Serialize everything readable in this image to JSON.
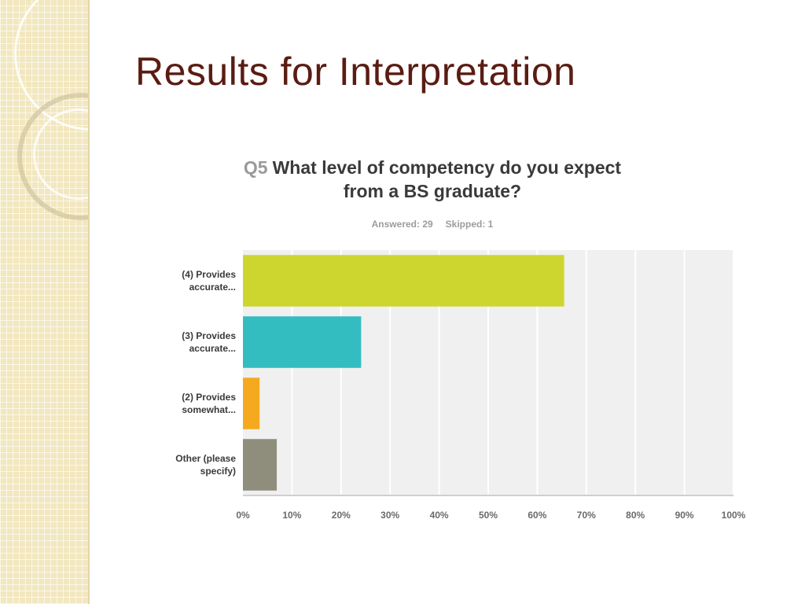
{
  "slide": {
    "title": "Results for Interpretation"
  },
  "survey": {
    "question_number": "Q5",
    "question_line1": "What level of competency do you expect",
    "question_line2": "from a BS graduate?",
    "answered": "Answered: 29",
    "skipped": "Skipped: 1"
  },
  "chart_data": {
    "type": "bar",
    "orientation": "horizontal",
    "categories": [
      [
        "(4) Provides",
        "accurate..."
      ],
      [
        "(3) Provides",
        "accurate..."
      ],
      [
        "(2) Provides",
        "somewhat..."
      ],
      [
        "Other (please",
        "specify)"
      ]
    ],
    "values": [
      65.5,
      24.1,
      3.4,
      6.9
    ],
    "xlim": [
      0,
      100
    ],
    "ticks": [
      0,
      10,
      20,
      30,
      40,
      50,
      60,
      70,
      80,
      90,
      100
    ],
    "tick_labels": [
      "0%",
      "10%",
      "20%",
      "30%",
      "40%",
      "50%",
      "60%",
      "70%",
      "80%",
      "90%",
      "100%"
    ],
    "colors": [
      "#cdd62f",
      "#33bdc1",
      "#f5a91f",
      "#8f8d7c"
    ],
    "grid": true,
    "background": "#f0f0f0",
    "grid_color": "#ffffff"
  }
}
